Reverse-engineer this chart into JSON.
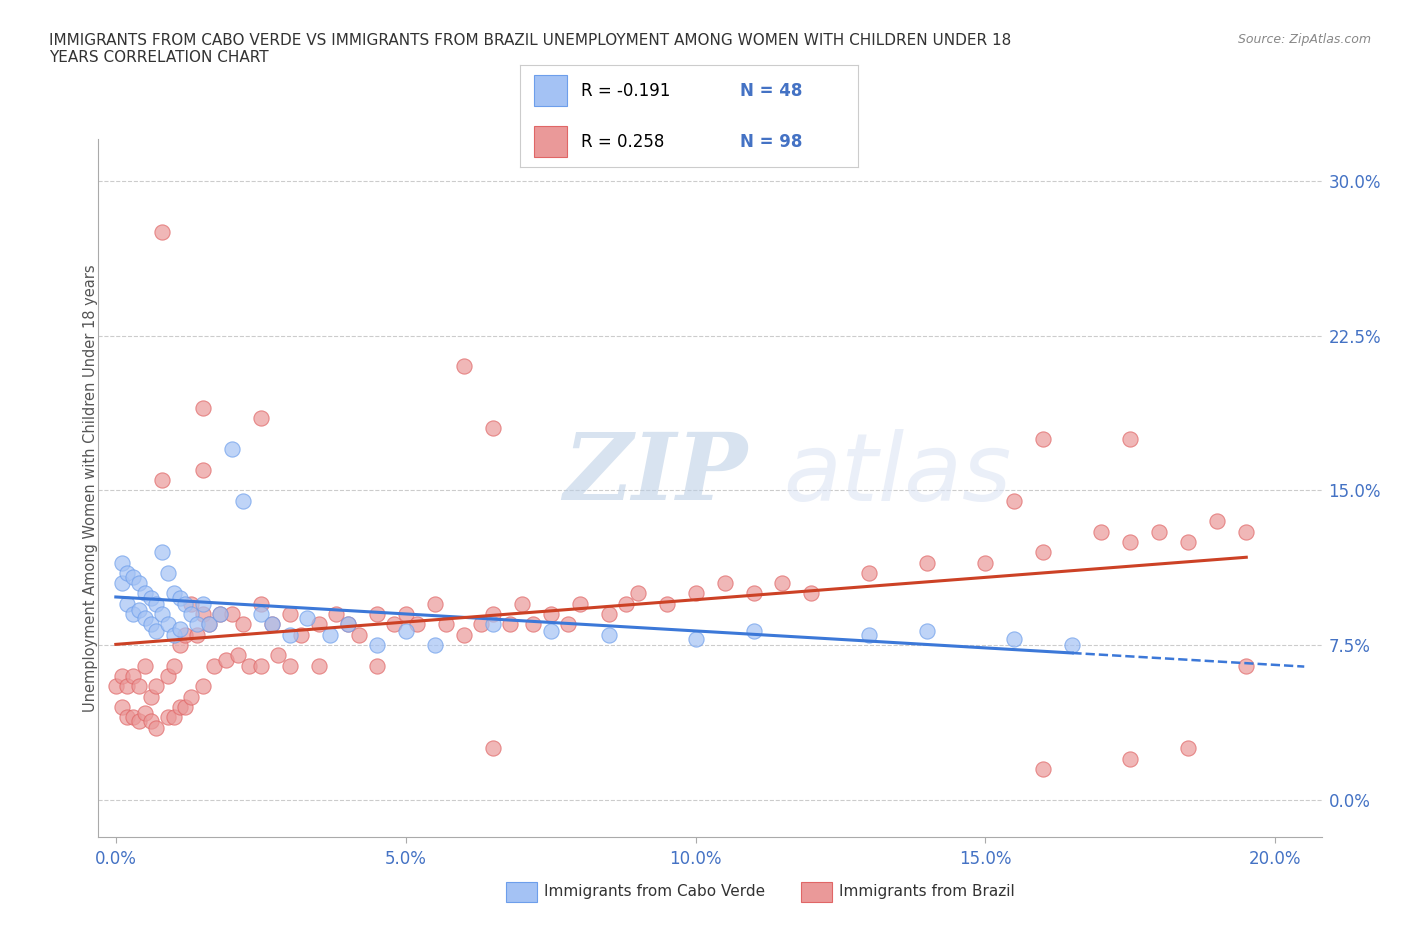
{
  "title": "IMMIGRANTS FROM CABO VERDE VS IMMIGRANTS FROM BRAZIL UNEMPLOYMENT AMONG WOMEN WITH CHILDREN UNDER 18\nYEARS CORRELATION CHART",
  "source": "Source: ZipAtlas.com",
  "ylabel": "Unemployment Among Women with Children Under 18 years",
  "xlabel_ticks": [
    "0.0%",
    "5.0%",
    "10.0%",
    "15.0%",
    "20.0%"
  ],
  "xlabel_vals": [
    0.0,
    0.05,
    0.1,
    0.15,
    0.2
  ],
  "ylabel_ticks": [
    "0.0%",
    "7.5%",
    "15.0%",
    "22.5%",
    "30.0%"
  ],
  "ylabel_vals": [
    0.0,
    0.075,
    0.15,
    0.225,
    0.3
  ],
  "xlim": [
    -0.003,
    0.208
  ],
  "ylim": [
    -0.018,
    0.32
  ],
  "cabo_verde_color": "#a4c2f4",
  "brazil_color": "#ea9999",
  "cabo_verde_edge_color": "#6d9eeb",
  "brazil_edge_color": "#e06666",
  "cabo_verde_line_color": "#3c78d8",
  "brazil_line_color": "#cc4125",
  "cabo_verde_label": "Immigrants from Cabo Verde",
  "brazil_label": "Immigrants from Brazil",
  "R_cabo": -0.191,
  "N_cabo": 48,
  "R_brazil": 0.258,
  "N_brazil": 98,
  "cabo_verde_x": [
    0.001,
    0.001,
    0.002,
    0.002,
    0.003,
    0.003,
    0.004,
    0.004,
    0.005,
    0.005,
    0.006,
    0.006,
    0.007,
    0.007,
    0.008,
    0.008,
    0.009,
    0.009,
    0.01,
    0.01,
    0.011,
    0.011,
    0.012,
    0.013,
    0.014,
    0.015,
    0.016,
    0.018,
    0.02,
    0.022,
    0.025,
    0.027,
    0.03,
    0.033,
    0.037,
    0.04,
    0.045,
    0.05,
    0.055,
    0.065,
    0.075,
    0.085,
    0.1,
    0.11,
    0.13,
    0.14,
    0.155,
    0.165
  ],
  "cabo_verde_y": [
    0.115,
    0.105,
    0.11,
    0.095,
    0.108,
    0.09,
    0.105,
    0.092,
    0.1,
    0.088,
    0.098,
    0.085,
    0.095,
    0.082,
    0.12,
    0.09,
    0.11,
    0.085,
    0.1,
    0.08,
    0.098,
    0.083,
    0.095,
    0.09,
    0.085,
    0.095,
    0.085,
    0.09,
    0.17,
    0.145,
    0.09,
    0.085,
    0.08,
    0.088,
    0.08,
    0.085,
    0.075,
    0.082,
    0.075,
    0.085,
    0.082,
    0.08,
    0.078,
    0.082,
    0.08,
    0.082,
    0.078,
    0.075
  ],
  "brazil_x": [
    0.0,
    0.001,
    0.001,
    0.002,
    0.002,
    0.003,
    0.003,
    0.004,
    0.004,
    0.005,
    0.005,
    0.006,
    0.006,
    0.007,
    0.007,
    0.008,
    0.008,
    0.009,
    0.009,
    0.01,
    0.01,
    0.011,
    0.011,
    0.012,
    0.012,
    0.013,
    0.013,
    0.014,
    0.015,
    0.015,
    0.016,
    0.017,
    0.018,
    0.019,
    0.02,
    0.021,
    0.022,
    0.023,
    0.025,
    0.025,
    0.027,
    0.028,
    0.03,
    0.03,
    0.032,
    0.035,
    0.035,
    0.038,
    0.04,
    0.042,
    0.045,
    0.045,
    0.048,
    0.05,
    0.052,
    0.055,
    0.057,
    0.06,
    0.063,
    0.065,
    0.068,
    0.07,
    0.072,
    0.075,
    0.078,
    0.08,
    0.085,
    0.088,
    0.09,
    0.095,
    0.1,
    0.105,
    0.11,
    0.115,
    0.12,
    0.13,
    0.14,
    0.15,
    0.16,
    0.17,
    0.175,
    0.18,
    0.185,
    0.19,
    0.195,
    0.015,
    0.025,
    0.06,
    0.155,
    0.195,
    0.065,
    0.16,
    0.175,
    0.185,
    0.015,
    0.065,
    0.16,
    0.175
  ],
  "brazil_y": [
    0.055,
    0.06,
    0.045,
    0.055,
    0.04,
    0.06,
    0.04,
    0.055,
    0.038,
    0.065,
    0.042,
    0.05,
    0.038,
    0.055,
    0.035,
    0.275,
    0.155,
    0.06,
    0.04,
    0.065,
    0.04,
    0.075,
    0.045,
    0.08,
    0.045,
    0.095,
    0.05,
    0.08,
    0.09,
    0.055,
    0.085,
    0.065,
    0.09,
    0.068,
    0.09,
    0.07,
    0.085,
    0.065,
    0.095,
    0.065,
    0.085,
    0.07,
    0.09,
    0.065,
    0.08,
    0.085,
    0.065,
    0.09,
    0.085,
    0.08,
    0.09,
    0.065,
    0.085,
    0.09,
    0.085,
    0.095,
    0.085,
    0.08,
    0.085,
    0.09,
    0.085,
    0.095,
    0.085,
    0.09,
    0.085,
    0.095,
    0.09,
    0.095,
    0.1,
    0.095,
    0.1,
    0.105,
    0.1,
    0.105,
    0.1,
    0.11,
    0.115,
    0.115,
    0.12,
    0.13,
    0.125,
    0.13,
    0.125,
    0.135,
    0.13,
    0.19,
    0.185,
    0.21,
    0.145,
    0.065,
    0.025,
    0.015,
    0.02,
    0.025,
    0.16,
    0.18,
    0.175,
    0.175
  ],
  "watermark_zip": "ZIP",
  "watermark_atlas": "atlas",
  "bg_color": "#ffffff",
  "grid_color": "#cccccc",
  "title_color": "#333333",
  "tick_color": "#4472c4",
  "legend_text_color": "#000000",
  "legend_N_color": "#4472c4"
}
